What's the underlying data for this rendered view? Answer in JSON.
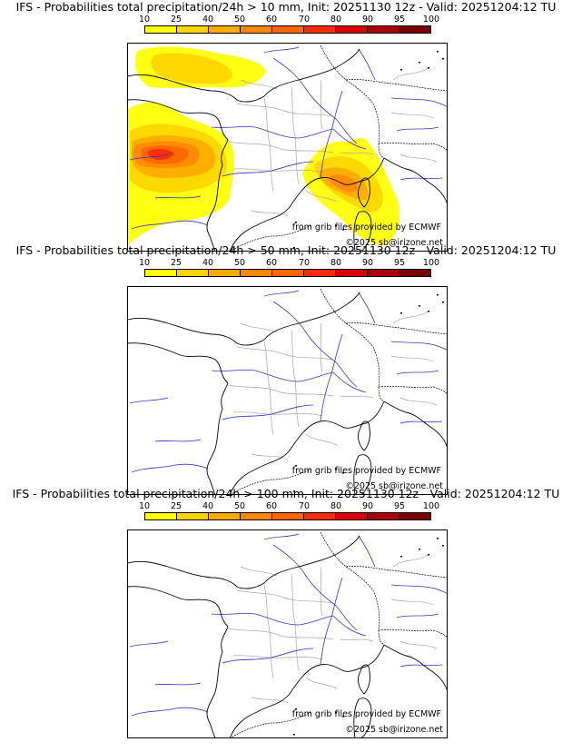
{
  "panels": [
    {
      "title": "IFS - Probabilities total precipitation/24h > 10 mm, Init: 20251130 12z - Valid: 20251204:12 TU",
      "credit_source": "from grib files provided by ECMWF",
      "credit_copyright": "©2025 sb@irizone.net",
      "has_precipitation": true
    },
    {
      "title": "IFS - Probabilities total precipitation/24h > 50 mm, Init: 20251130 12z - Valid: 20251204:12 TU",
      "credit_source": "from grib files provided by ECMWF",
      "credit_copyright": "©2025 sb@irizone.net",
      "has_precipitation": false
    },
    {
      "title": "IFS - Probabilities total precipitation/24h > 100 mm, Init: 20251130 12z - Valid: 20251204:12 TU",
      "credit_source": "from grib files provided by ECMWF",
      "credit_copyright": "©2025 sb@irizone.net",
      "has_precipitation": false
    }
  ],
  "colorbar": {
    "ticks": [
      "10",
      "25",
      "40",
      "50",
      "60",
      "70",
      "80",
      "90",
      "95",
      "100"
    ],
    "colors": [
      "#ffff00",
      "#ffd400",
      "#ffaa00",
      "#ff8800",
      "#ff6600",
      "#ff2a00",
      "#dd0000",
      "#aa0000",
      "#7a0000"
    ]
  },
  "map_colors": {
    "coast": "#000000",
    "border": "#000000",
    "rivers": "#3333cc",
    "regions": "#a6a6a6"
  }
}
